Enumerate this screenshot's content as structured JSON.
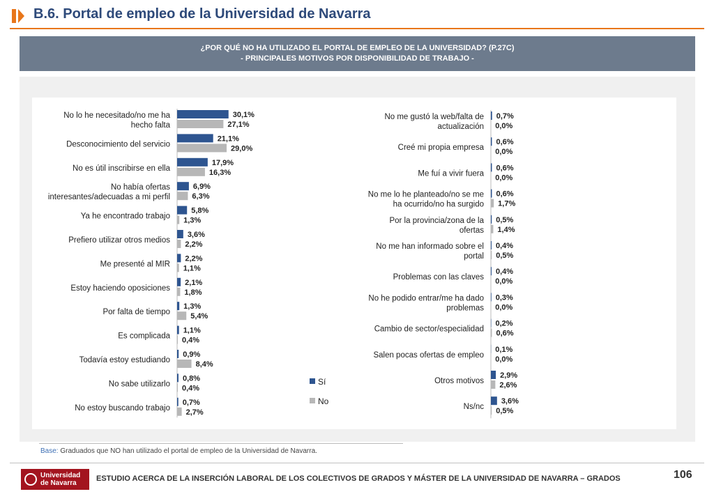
{
  "header": {
    "title": "B.6. Portal de empleo de la Universidad de Navarra"
  },
  "banner": {
    "line1": "¿POR QUÉ NO HA UTILIZADO EL PORTAL DE EMPLEO DE LA UNIVERSIDAD? (P.27C)",
    "line2": "- PRINCIPALES MOTIVOS POR DISPONIBILIDAD DE TRABAJO -"
  },
  "colors": {
    "si": "#2e5590",
    "no": "#b7b7b7",
    "accent": "#e8761a",
    "brand": "#a3141f"
  },
  "chart_data": [
    {
      "type": "bar",
      "orientation": "horizontal",
      "categories": [
        "No lo he necesitado/no me ha hecho falta",
        "Desconocimiento del servicio",
        "No es útil inscribirse en ella",
        "No había ofertas interesantes/adecuadas a mi perfil",
        "Ya he encontrado trabajo",
        "Prefiero utilizar otros medios",
        "Me presenté al MIR",
        "Estoy haciendo oposiciones",
        "Por falta de tiempo",
        "Es complicada",
        "Todavía estoy estudiando",
        "No sabe utilizarlo",
        "No estoy buscando trabajo"
      ],
      "series": [
        {
          "name": "Sí",
          "values": [
            30.1,
            21.1,
            17.9,
            6.9,
            5.8,
            3.6,
            2.2,
            2.1,
            1.3,
            1.1,
            0.9,
            0.8,
            0.7
          ],
          "labels": [
            "30,1%",
            "21,1%",
            "17,9%",
            "6,9%",
            "5,8%",
            "3,6%",
            "2,2%",
            "2,1%",
            "1,3%",
            "1,1%",
            "0,9%",
            "0,8%",
            "0,7%"
          ]
        },
        {
          "name": "No",
          "values": [
            27.1,
            29.0,
            16.3,
            6.3,
            1.3,
            2.2,
            1.1,
            1.8,
            5.4,
            0.4,
            8.4,
            0.4,
            2.7
          ],
          "labels": [
            "27,1%",
            "29,0%",
            "16,3%",
            "6,3%",
            "1,3%",
            "2,2%",
            "1,1%",
            "1,8%",
            "5,4%",
            "0,4%",
            "8,4%",
            "0,4%",
            "2,7%"
          ]
        }
      ],
      "xlim": [
        0,
        35
      ],
      "grid": false
    },
    {
      "type": "bar",
      "orientation": "horizontal",
      "categories": [
        "No me gustó la web/falta de actualización",
        "Creé mi propia empresa",
        "Me fuí a vivir fuera",
        "No me lo he planteado/no se me ha ocurrido/no ha surgido",
        "Por la provincia/zona de la ofertas",
        "No me han informado sobre el portal",
        "Problemas con las claves",
        "No he podido entrar/me ha dado problemas",
        "Cambio de sector/especialidad",
        "Salen pocas ofertas de empleo",
        "Otros motivos",
        "Ns/nc"
      ],
      "series": [
        {
          "name": "Sí",
          "values": [
            0.7,
            0.6,
            0.6,
            0.6,
            0.5,
            0.4,
            0.4,
            0.3,
            0.2,
            0.1,
            2.9,
            3.6
          ],
          "labels": [
            "0,7%",
            "0,6%",
            "0,6%",
            "0,6%",
            "0,5%",
            "0,4%",
            "0,4%",
            "0,3%",
            "0,2%",
            "0,1%",
            "2,9%",
            "3,6%"
          ]
        },
        {
          "name": "No",
          "values": [
            0.0,
            0.0,
            0.0,
            1.7,
            1.4,
            0.5,
            0.0,
            0.0,
            0.6,
            0.0,
            2.6,
            0.5
          ],
          "labels": [
            "0,0%",
            "0,0%",
            "0,0%",
            "1,7%",
            "1,4%",
            "0,5%",
            "0,0%",
            "0,0%",
            "0,6%",
            "0,0%",
            "2,6%",
            "0,5%"
          ]
        }
      ],
      "xlim": [
        0,
        35
      ],
      "grid": false
    }
  ],
  "legend": {
    "items": [
      "Sí",
      "No"
    ],
    "placement": "center"
  },
  "base": {
    "label": "Base:",
    "text": " Graduados que NO han utilizado el  portal de empleo de la Universidad de Navarra."
  },
  "footer": {
    "logo_line1": "Universidad",
    "logo_line2": "de Navarra",
    "text": "ESTUDIO ACERCA DE LA INSERCIÓN LABORAL DE LOS COLECTIVOS DE GRADOS Y MÁSTER DE LA UNIVERSIDAD DE NAVARRA – GRADOS",
    "page": "106"
  }
}
